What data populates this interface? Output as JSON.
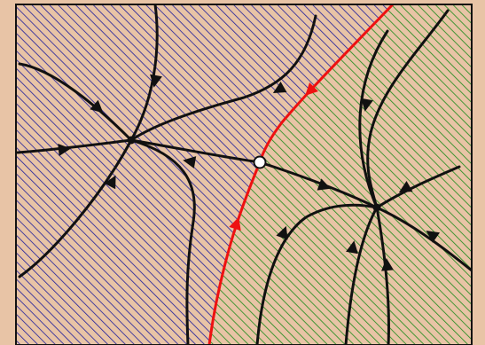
{
  "diagram": {
    "type": "phase-portrait",
    "colors": {
      "background": "#e8c4a6",
      "frame": "#000000",
      "left_basin_hatch": "#1c1c9c",
      "right_basin_hatch": "#1a8a1a",
      "separatrix": "#ee1111",
      "trajectory": "#111111",
      "saddle_fill": "#ffffff"
    },
    "equilibria": [
      {
        "kind": "stable-node",
        "basin": "left"
      },
      {
        "kind": "saddle",
        "basin": "boundary"
      },
      {
        "kind": "stable-node",
        "basin": "right"
      }
    ]
  }
}
